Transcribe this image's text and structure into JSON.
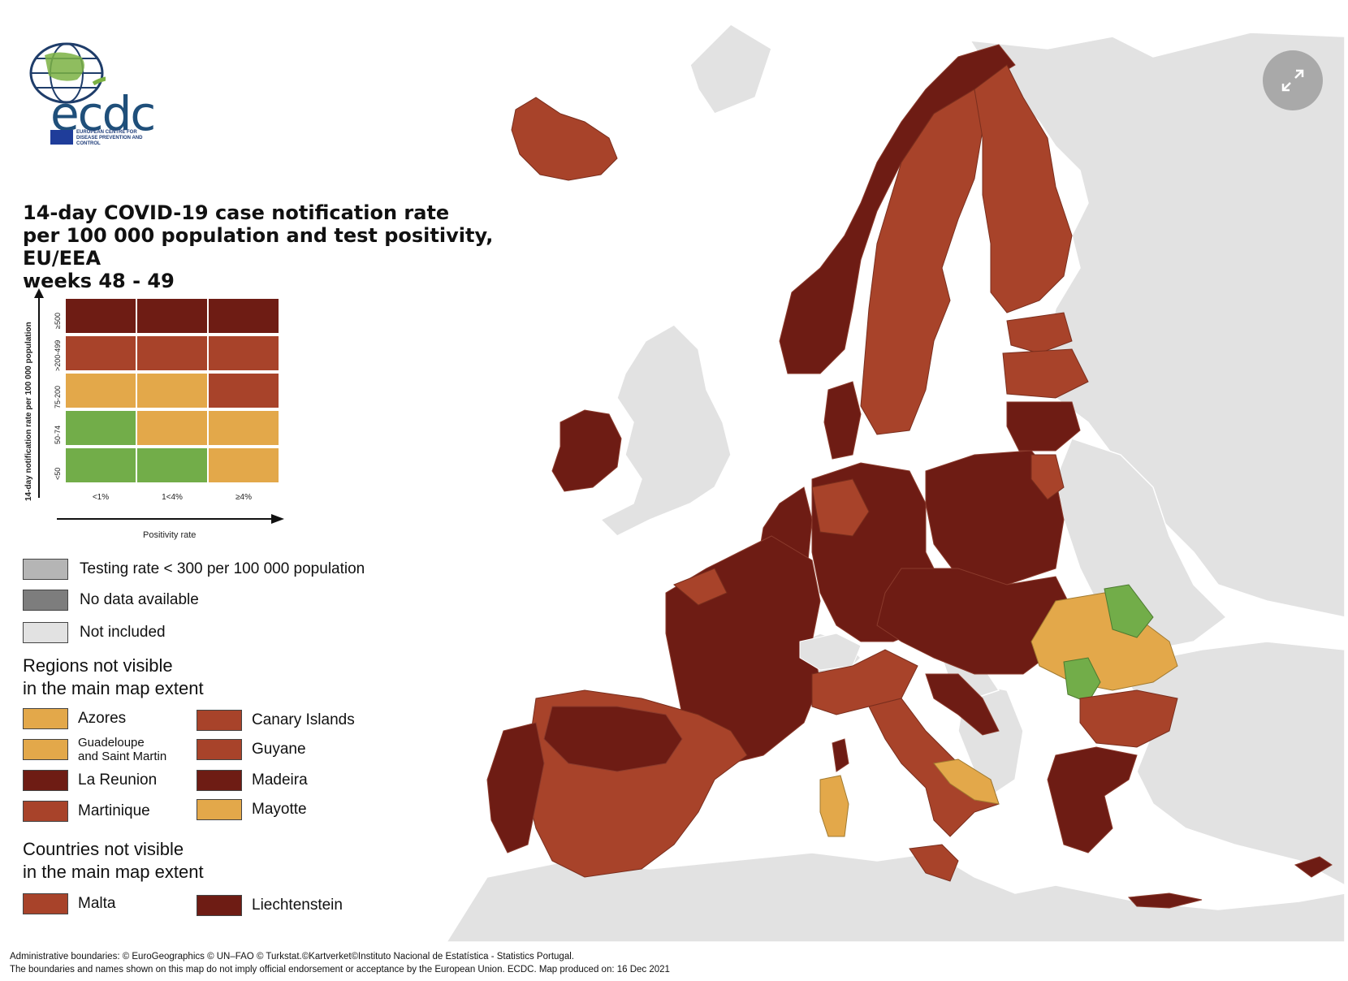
{
  "colors": {
    "dark_red": "#6e1c14",
    "red": "#a8432a",
    "orange": "#e3a84a",
    "green": "#72ad49",
    "grey_testing": "#b5b5b5",
    "grey_nodata": "#7d7d7d",
    "grey_notincluded": "#e2e2e2",
    "sea": "#ffffff"
  },
  "logo": {
    "name": "ecdc",
    "subtitle": "EUROPEAN CENTRE FOR DISEASE PREVENTION AND CONTROL"
  },
  "title": {
    "line1": "14-day COVID-19 case notification rate",
    "line2": "per 100 000 population and test positivity, EU/EEA",
    "line3": "weeks 48 - 49"
  },
  "matrix": {
    "y_axis_title": "14-day notification rate per 100 000 population",
    "x_axis_title": "Positivity rate",
    "y_labels": [
      "≥500",
      ">200-499",
      "75-200",
      "50-74",
      "<50"
    ],
    "x_labels": [
      "<1%",
      "1<4%",
      "≥4%"
    ],
    "cells": [
      [
        "dark_red",
        "dark_red",
        "dark_red"
      ],
      [
        "red",
        "red",
        "red"
      ],
      [
        "orange",
        "orange",
        "red"
      ],
      [
        "green",
        "orange",
        "orange"
      ],
      [
        "green",
        "green",
        "orange"
      ]
    ]
  },
  "status_legend": [
    {
      "label": "Testing rate < 300 per 100 000 population",
      "color": "grey_testing"
    },
    {
      "label": "No data available",
      "color": "grey_nodata"
    },
    {
      "label": "Not included",
      "color": "grey_notincluded"
    }
  ],
  "regions_title": {
    "line1": "Regions not visible",
    "line2": "in the main map extent"
  },
  "regions": [
    {
      "label": "Azores",
      "color": "orange"
    },
    {
      "label": "Canary Islands",
      "color": "red"
    },
    {
      "label": "Guadeloupe and Saint Martin",
      "line1": "Guadeloupe",
      "line2": "and Saint Martin",
      "color": "orange"
    },
    {
      "label": "Guyane",
      "color": "red"
    },
    {
      "label": "La Reunion",
      "color": "dark_red"
    },
    {
      "label": "Madeira",
      "color": "dark_red"
    },
    {
      "label": "Martinique",
      "color": "red"
    },
    {
      "label": "Mayotte",
      "color": "orange"
    }
  ],
  "countries_title": {
    "line1": "Countries not visible",
    "line2": "in the main map extent"
  },
  "countries": [
    {
      "label": "Malta",
      "color": "red"
    },
    {
      "label": "Liechtenstein",
      "color": "dark_red"
    }
  ],
  "footer": {
    "line1": "Administrative boundaries: © EuroGeographics © UN–FAO © Turkstat.©Kartverket©Instituto Nacional de Estatística - Statistics Portugal.",
    "line2": "The boundaries and names shown on this map do not imply official endorsement or acceptance by the European Union. ECDC. Map produced on: 16 Dec 2021"
  },
  "expand_icon": "expand-icon"
}
